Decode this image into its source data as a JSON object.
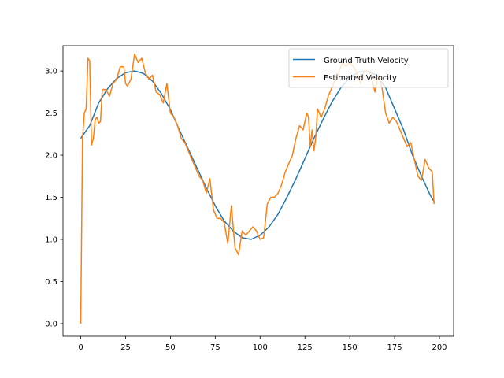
{
  "colors": {
    "ground_truth": "#1f77b4",
    "estimated": "#ff7f0e"
  },
  "chart_data": {
    "type": "line",
    "title": "",
    "xlabel": "",
    "ylabel": "",
    "xlim": [
      -9.9,
      207.9
    ],
    "ylim": [
      -0.15,
      3.3
    ],
    "xticks": [
      0,
      25,
      50,
      75,
      100,
      125,
      150,
      175,
      200
    ],
    "xtick_labels": [
      "0",
      "25",
      "50",
      "75",
      "100",
      "125",
      "150",
      "175",
      "200"
    ],
    "yticks": [
      0.0,
      0.5,
      1.0,
      1.5,
      2.0,
      2.5,
      3.0
    ],
    "ytick_labels": [
      "0.0",
      "0.5",
      "1.0",
      "1.5",
      "2.0",
      "2.5",
      "3.0"
    ],
    "grid": false,
    "legend_position": "top-right",
    "series": [
      {
        "name": "Ground Truth Velocity",
        "x": [
          0,
          5,
          10,
          15,
          20,
          25,
          30,
          35,
          40,
          45,
          50,
          55,
          60,
          65,
          70,
          75,
          80,
          85,
          90,
          95,
          100,
          105,
          110,
          115,
          120,
          125,
          130,
          135,
          140,
          145,
          150,
          155,
          160,
          165,
          170,
          175,
          180,
          185,
          190,
          195,
          197
        ],
        "y": [
          2.2,
          2.35,
          2.62,
          2.79,
          2.91,
          2.98,
          3.0,
          2.97,
          2.88,
          2.73,
          2.54,
          2.3,
          2.07,
          1.84,
          1.61,
          1.4,
          1.22,
          1.1,
          1.02,
          1.0,
          1.05,
          1.15,
          1.3,
          1.5,
          1.72,
          1.96,
          2.2,
          2.42,
          2.63,
          2.8,
          2.92,
          2.99,
          3.0,
          2.95,
          2.8,
          2.55,
          2.3,
          2.0,
          1.75,
          1.52,
          1.45
        ]
      },
      {
        "name": "Estimated Velocity",
        "x": [
          0,
          1,
          2,
          3,
          4,
          5,
          6,
          7,
          8,
          9,
          10,
          11,
          12,
          14,
          16,
          18,
          20,
          22,
          24,
          25,
          26,
          28,
          30,
          32,
          34,
          36,
          38,
          40,
          42,
          44,
          46,
          48,
          50,
          52,
          54,
          56,
          58,
          60,
          62,
          64,
          66,
          68,
          70,
          72,
          74,
          76,
          78,
          80,
          82,
          84,
          86,
          88,
          90,
          92,
          94,
          96,
          98,
          100,
          102,
          104,
          106,
          108,
          110,
          112,
          114,
          116,
          118,
          120,
          122,
          124,
          126,
          127,
          128,
          129,
          130,
          131,
          132,
          134,
          136,
          138,
          140,
          142,
          144,
          146,
          148,
          150,
          152,
          154,
          156,
          158,
          160,
          162,
          164,
          166,
          168,
          170,
          172,
          174,
          176,
          178,
          180,
          182,
          184,
          186,
          188,
          190,
          192,
          194,
          196,
          197
        ],
        "y": [
          0.0,
          2.2,
          2.5,
          2.55,
          3.15,
          3.12,
          2.12,
          2.2,
          2.42,
          2.45,
          2.38,
          2.4,
          2.78,
          2.78,
          2.7,
          2.85,
          2.9,
          3.05,
          3.05,
          2.85,
          2.82,
          2.9,
          3.2,
          3.1,
          3.15,
          2.98,
          2.9,
          2.95,
          2.75,
          2.72,
          2.62,
          2.85,
          2.5,
          2.45,
          2.35,
          2.2,
          2.15,
          2.05,
          1.95,
          1.85,
          1.75,
          1.7,
          1.55,
          1.72,
          1.35,
          1.25,
          1.25,
          1.2,
          0.95,
          1.4,
          0.9,
          0.82,
          1.1,
          1.05,
          1.1,
          1.15,
          1.1,
          1.0,
          1.02,
          1.42,
          1.5,
          1.5,
          1.55,
          1.65,
          1.8,
          1.9,
          2.0,
          2.2,
          2.35,
          2.3,
          2.5,
          2.45,
          2.1,
          2.3,
          2.05,
          2.2,
          2.55,
          2.45,
          2.55,
          2.7,
          2.8,
          2.9,
          3.0,
          3.1,
          3.05,
          3.1,
          3.05,
          2.98,
          2.85,
          3.0,
          3.0,
          2.95,
          2.75,
          2.95,
          2.8,
          2.5,
          2.38,
          2.45,
          2.4,
          2.3,
          2.2,
          2.1,
          2.15,
          1.95,
          1.75,
          1.7,
          1.95,
          1.85,
          1.8,
          1.42
        ]
      }
    ]
  }
}
